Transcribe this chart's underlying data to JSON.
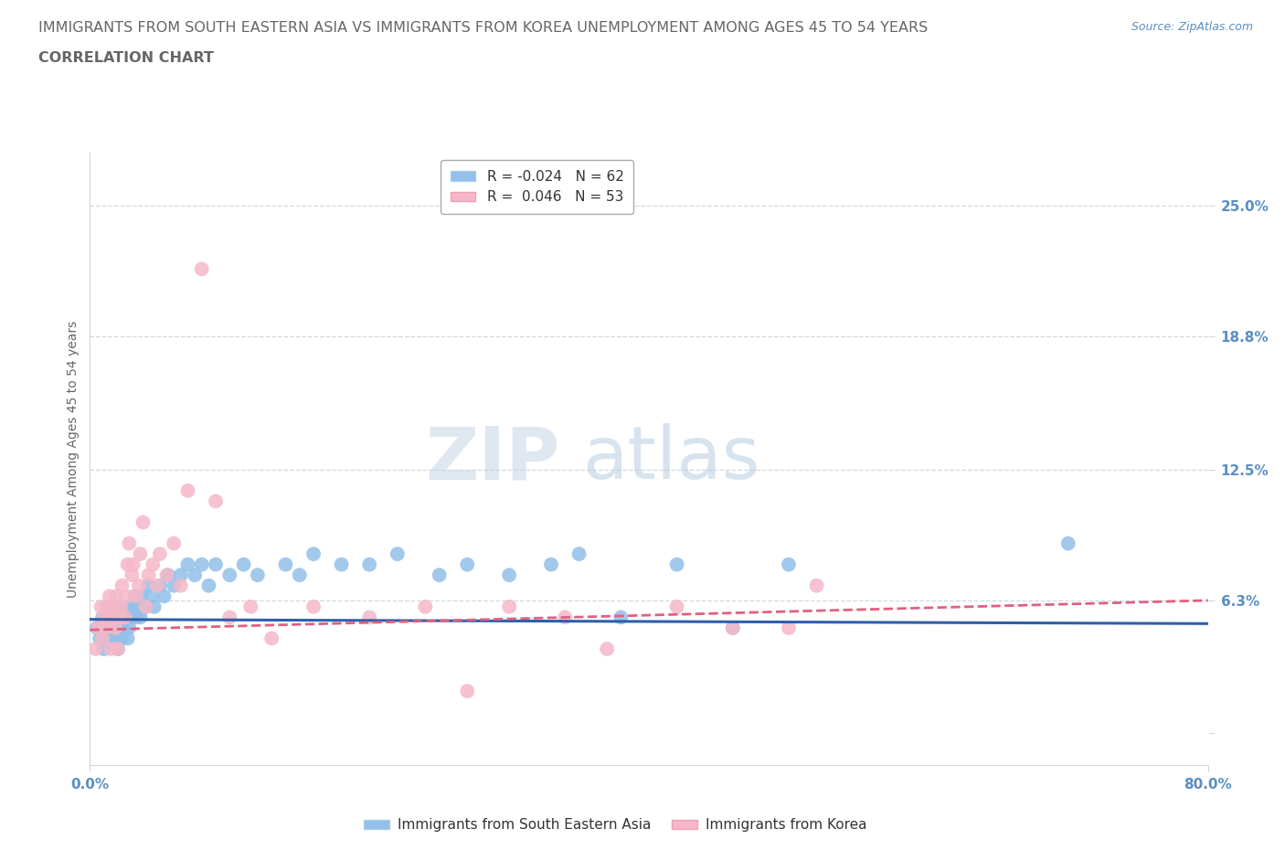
{
  "title_line1": "IMMIGRANTS FROM SOUTH EASTERN ASIA VS IMMIGRANTS FROM KOREA UNEMPLOYMENT AMONG AGES 45 TO 54 YEARS",
  "title_line2": "CORRELATION CHART",
  "source_text": "Source: ZipAtlas.com",
  "ylabel": "Unemployment Among Ages 45 to 54 years",
  "xmin": 0.0,
  "xmax": 0.8,
  "ymin": -0.015,
  "ymax": 0.275,
  "yticks": [
    0.0,
    0.063,
    0.125,
    0.188,
    0.25
  ],
  "ytick_labels": [
    "",
    "6.3%",
    "12.5%",
    "18.8%",
    "25.0%"
  ],
  "xticks": [
    0.0,
    0.8
  ],
  "xtick_labels": [
    "0.0%",
    "80.0%"
  ],
  "blue_R": -0.024,
  "blue_N": 62,
  "pink_R": 0.046,
  "pink_N": 53,
  "blue_color": "#92c0e8",
  "pink_color": "#f5b8c8",
  "blue_trend_color": "#2f5faa",
  "pink_trend_color": "#e06080",
  "blue_label": "Immigrants from South Eastern Asia",
  "pink_label": "Immigrants from Korea",
  "watermark": "ZIPatlas",
  "blue_scatter_x": [
    0.005,
    0.007,
    0.009,
    0.01,
    0.011,
    0.012,
    0.013,
    0.014,
    0.015,
    0.016,
    0.017,
    0.018,
    0.019,
    0.02,
    0.021,
    0.022,
    0.023,
    0.024,
    0.025,
    0.026,
    0.027,
    0.028,
    0.03,
    0.031,
    0.032,
    0.033,
    0.035,
    0.036,
    0.037,
    0.04,
    0.042,
    0.044,
    0.046,
    0.05,
    0.053,
    0.056,
    0.06,
    0.065,
    0.07,
    0.075,
    0.08,
    0.085,
    0.09,
    0.1,
    0.11,
    0.12,
    0.14,
    0.15,
    0.16,
    0.18,
    0.2,
    0.22,
    0.25,
    0.27,
    0.3,
    0.33,
    0.35,
    0.38,
    0.42,
    0.46,
    0.5,
    0.7
  ],
  "blue_scatter_y": [
    0.05,
    0.045,
    0.055,
    0.04,
    0.05,
    0.055,
    0.06,
    0.045,
    0.055,
    0.05,
    0.06,
    0.045,
    0.055,
    0.04,
    0.055,
    0.06,
    0.045,
    0.05,
    0.055,
    0.06,
    0.045,
    0.05,
    0.055,
    0.06,
    0.065,
    0.055,
    0.06,
    0.055,
    0.065,
    0.06,
    0.07,
    0.065,
    0.06,
    0.07,
    0.065,
    0.075,
    0.07,
    0.075,
    0.08,
    0.075,
    0.08,
    0.07,
    0.08,
    0.075,
    0.08,
    0.075,
    0.08,
    0.075,
    0.085,
    0.08,
    0.08,
    0.085,
    0.075,
    0.08,
    0.075,
    0.08,
    0.085,
    0.055,
    0.08,
    0.05,
    0.08,
    0.09
  ],
  "pink_scatter_x": [
    0.004,
    0.006,
    0.008,
    0.009,
    0.01,
    0.011,
    0.012,
    0.013,
    0.014,
    0.015,
    0.016,
    0.017,
    0.018,
    0.019,
    0.02,
    0.021,
    0.022,
    0.023,
    0.025,
    0.026,
    0.027,
    0.028,
    0.03,
    0.031,
    0.033,
    0.035,
    0.036,
    0.038,
    0.04,
    0.042,
    0.045,
    0.048,
    0.05,
    0.055,
    0.06,
    0.065,
    0.07,
    0.08,
    0.09,
    0.1,
    0.115,
    0.13,
    0.16,
    0.2,
    0.24,
    0.27,
    0.3,
    0.34,
    0.37,
    0.42,
    0.46,
    0.5,
    0.52
  ],
  "pink_scatter_y": [
    0.04,
    0.05,
    0.06,
    0.045,
    0.055,
    0.05,
    0.06,
    0.055,
    0.065,
    0.04,
    0.055,
    0.06,
    0.05,
    0.065,
    0.04,
    0.055,
    0.06,
    0.07,
    0.055,
    0.065,
    0.08,
    0.09,
    0.075,
    0.08,
    0.065,
    0.07,
    0.085,
    0.1,
    0.06,
    0.075,
    0.08,
    0.07,
    0.085,
    0.075,
    0.09,
    0.07,
    0.115,
    0.22,
    0.11,
    0.055,
    0.06,
    0.045,
    0.06,
    0.055,
    0.06,
    0.02,
    0.06,
    0.055,
    0.04,
    0.06,
    0.05,
    0.05,
    0.07
  ],
  "grid_color": "#d0d8e0",
  "background_color": "#ffffff",
  "axis_color": "#5a8fc2",
  "title_color": "#666666",
  "title_fontsize": 11.5,
  "axis_label_fontsize": 10,
  "tick_fontsize": 11,
  "legend_fontsize": 11
}
